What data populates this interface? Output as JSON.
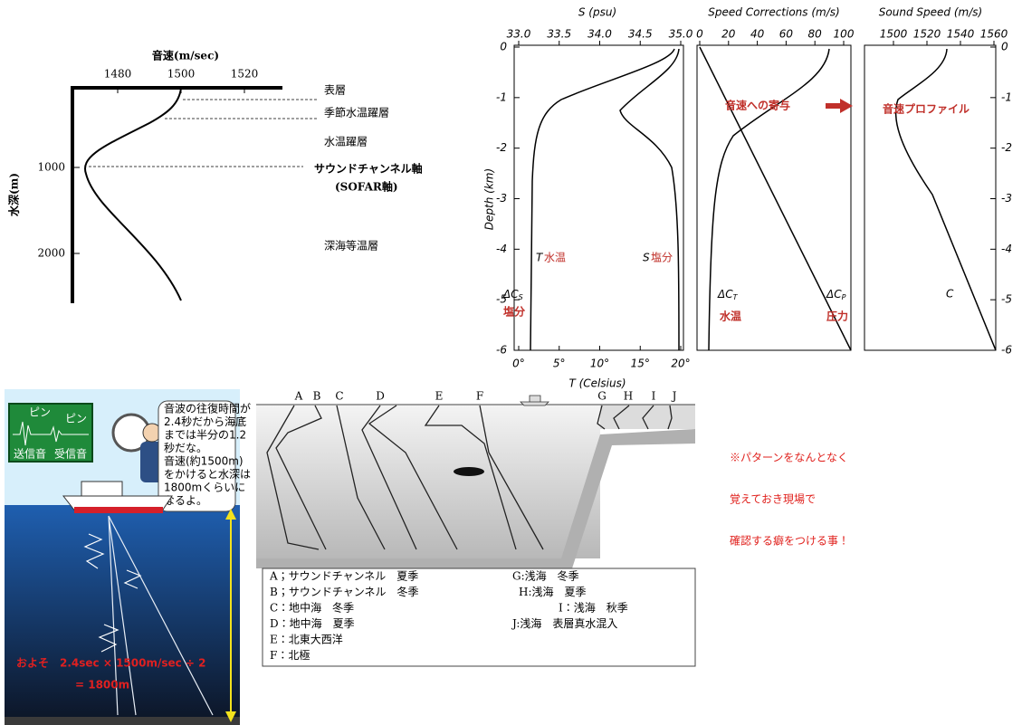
{
  "profile": {
    "title": "音速(m/sec)",
    "y_label": "水深(m)",
    "x_ticks": [
      1480,
      1500,
      1520
    ],
    "y_ticks": [
      1000,
      2000
    ],
    "layers": [
      "表層",
      "季節水温躍層",
      "水温躍層",
      "サウンドチャンネル軸",
      "(SOFAR軸)",
      "深海等温層"
    ]
  },
  "panels": {
    "s_title": "S (psu)",
    "s_ticks": [
      "33.0",
      "33.5",
      "34.0",
      "34.5",
      "35.0"
    ],
    "speed_title": "Speed Corrections (m/s)",
    "speed_ticks": [
      0,
      20,
      40,
      60,
      80,
      100
    ],
    "sound_title": "Sound Speed (m/s)",
    "sound_ticks": [
      1500,
      1520,
      1540,
      1560
    ],
    "depth_label": "Depth (km)",
    "depth_ticks": [
      0,
      -1,
      -2,
      -3,
      -4,
      -5,
      -6
    ],
    "t_label": "T (Celsius)",
    "t_ticks": [
      "0°",
      "5°",
      "10°",
      "15°",
      "20°"
    ],
    "temp_symbol": "T",
    "temp_text": "水温",
    "sal_symbol": "S",
    "sal_text": "塩分",
    "dcs": {
      "symbol": "ΔC",
      "sub": "S",
      "text": "塩分"
    },
    "dct": {
      "symbol": "ΔC",
      "sub": "T",
      "text": "水温"
    },
    "dcp": {
      "symbol": "ΔC",
      "sub": "P",
      "text": "圧力"
    },
    "c_symbol": "C",
    "contribution": "音速への寄与",
    "profile_label": "音速プロファイル"
  },
  "illustration": {
    "ping": [
      "ピン",
      "ピン"
    ],
    "send": "送信音",
    "receive": "受信音",
    "bubble": [
      "音波の往復時間が",
      "2.4秒だから海底",
      "までは半分の1.2",
      "秒だな。",
      "音速(約1500m)",
      "をかけると水深は",
      "1800mくらいに",
      "なるよ。"
    ],
    "formula": "およそ　2.4sec × 1500m/sec ÷ 2",
    "result": "= 1800m"
  },
  "section": {
    "letters": [
      "A",
      "B",
      "C",
      "D",
      "E",
      "F",
      "G",
      "H",
      "I",
      "J"
    ],
    "legend_left": [
      "A；サウンドチャンネル　夏季",
      "B；サウンドチャンネル　冬季",
      "C：地中海　冬季",
      "D：地中海　夏季",
      "E：北東大西洋",
      "F：北極"
    ],
    "legend_right": [
      "G:浅海　冬季",
      "H:浅海　夏季",
      "I：浅海　秋季",
      "J:浅海　表層真水混入"
    ]
  },
  "note": [
    "※パターンをなんとなく",
    "覚えておき現場で",
    "確認する癖をつける事！"
  ]
}
